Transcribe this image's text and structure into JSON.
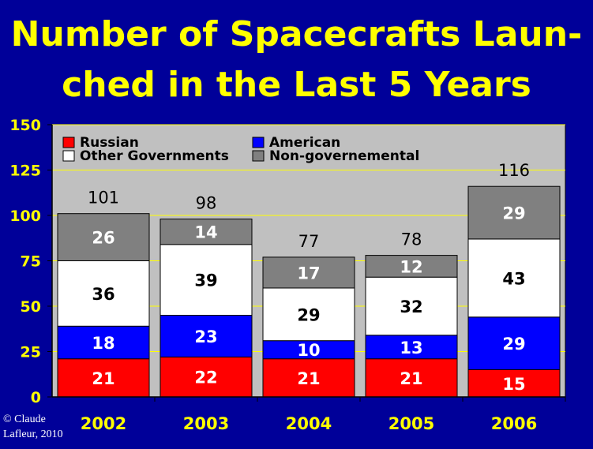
{
  "title_lines": [
    "Number of Spacecrafts Laun-",
    "ched in the Last 5 Years"
  ],
  "credit_lines": [
    "© Claude",
    "Lafleur, 2010"
  ],
  "colors": {
    "background": "#000099",
    "title": "#ffff00",
    "plot_area": "#c0c0c0",
    "gridline": "#ffff00"
  },
  "chart_data": {
    "type": "bar",
    "stacked": true,
    "title": "Number of Spacecrafts Launched in the Last 5 Years",
    "xlabel": "",
    "ylabel": "",
    "categories": [
      "2002",
      "2003",
      "2004",
      "2005",
      "2006"
    ],
    "series": [
      {
        "name": "Russian",
        "color": "#ff0000",
        "label_color": "#ffffff",
        "values": [
          21,
          22,
          21,
          21,
          15
        ]
      },
      {
        "name": "American",
        "color": "#0000ff",
        "label_color": "#ffffff",
        "values": [
          18,
          23,
          10,
          13,
          29
        ]
      },
      {
        "name": "Other Governments",
        "color": "#ffffff",
        "label_color": "#000000",
        "values": [
          36,
          39,
          29,
          32,
          43
        ]
      },
      {
        "name": "Non-governemental",
        "color": "#808080",
        "label_color": "#ffffff",
        "values": [
          26,
          14,
          17,
          12,
          29
        ]
      }
    ],
    "totals": [
      101,
      98,
      77,
      78,
      116
    ],
    "ylim": [
      0,
      150
    ],
    "yticks": [
      0,
      25,
      50,
      75,
      100,
      125,
      150
    ],
    "grid": true,
    "legend_position": "top-left"
  }
}
